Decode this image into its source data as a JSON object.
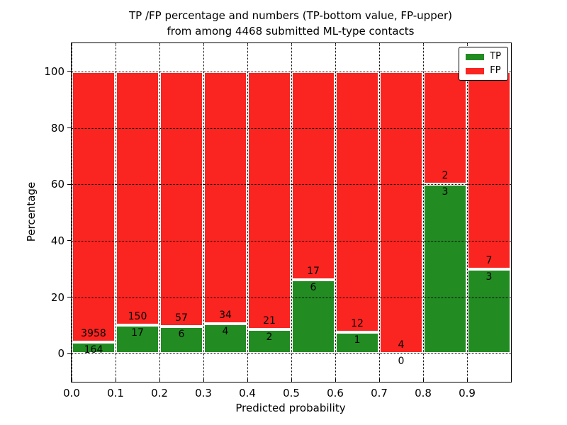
{
  "title": {
    "line1": "TP /FP percentage and numbers (TP-bottom value, FP-upper)",
    "line2": "from among 4468 submitted ML-type contacts"
  },
  "axes": {
    "xlabel": "Predicted probability",
    "ylabel": "Percentage",
    "xtick_labels": [
      "0.0",
      "0.1",
      "0.2",
      "0.3",
      "0.4",
      "0.5",
      "0.6",
      "0.7",
      "0.8",
      "0.9"
    ],
    "ytick_values": [
      0,
      20,
      40,
      60,
      80,
      100
    ]
  },
  "legend": {
    "items": [
      {
        "label": "TP",
        "color": "#228b22"
      },
      {
        "label": "FP",
        "color": "#fa2420"
      }
    ]
  },
  "chart_data": {
    "type": "bar",
    "stacked": true,
    "normalized_to_percent": true,
    "title": "TP /FP percentage and numbers (TP-bottom value, FP-upper)\nfrom among 4468 submitted ML-type contacts",
    "xlabel": "Predicted probability",
    "ylabel": "Percentage",
    "total_contacts": 4468,
    "categories": [
      "0.0",
      "0.1",
      "0.2",
      "0.3",
      "0.4",
      "0.5",
      "0.6",
      "0.7",
      "0.8",
      "0.9"
    ],
    "bin_width": 0.1,
    "xlim": [
      0.0,
      1.0
    ],
    "ylim": [
      -10,
      110
    ],
    "yticks": [
      0,
      20,
      40,
      60,
      80,
      100
    ],
    "grid": "dotted",
    "legend_position": "upper right",
    "series": [
      {
        "name": "TP",
        "color": "#228b22",
        "counts": [
          164,
          17,
          6,
          4,
          2,
          6,
          1,
          0,
          3,
          3
        ]
      },
      {
        "name": "FP",
        "color": "#fa2420",
        "counts": [
          3958,
          150,
          57,
          34,
          21,
          17,
          12,
          4,
          2,
          7
        ]
      }
    ],
    "tp_percent_of_bin": [
      4.0,
      10.2,
      9.5,
      10.5,
      8.7,
      26.1,
      7.7,
      0.0,
      60.0,
      30.0
    ]
  }
}
